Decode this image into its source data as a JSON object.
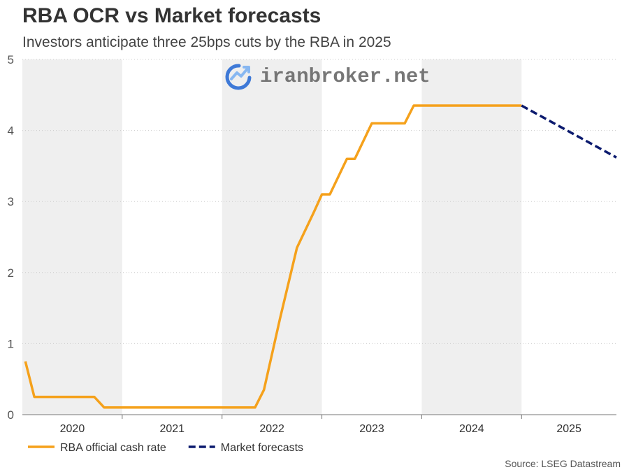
{
  "chart_data": {
    "type": "line",
    "title": "RBA OCR vs Market forecasts",
    "subtitle": "Investors anticipate three 25bps cuts by the RBA in 2025",
    "source": "Source: LSEG Datastream",
    "watermark": "iranbroker.net",
    "xlabel": "",
    "ylabel": "",
    "xlim": [
      2020.0,
      2025.95
    ],
    "ylim": [
      0,
      5
    ],
    "yticks": [
      0,
      1,
      2,
      3,
      4,
      5
    ],
    "year_labels": [
      "2020",
      "2021",
      "2022",
      "2023",
      "2024",
      "2025"
    ],
    "shaded_years": [
      "2020",
      "2022",
      "2024"
    ],
    "legend": {
      "position": "bottom-left"
    },
    "series": [
      {
        "name": "RBA official cash rate",
        "color": "#f5a11b",
        "style": "solid",
        "x": [
          2020.03,
          2020.12,
          2020.72,
          2020.82,
          2021.33,
          2022.33,
          2022.42,
          2022.58,
          2022.75,
          2022.92,
          2023.0,
          2023.08,
          2023.25,
          2023.33,
          2023.5,
          2023.83,
          2023.92,
          2025.0
        ],
        "values": [
          0.75,
          0.25,
          0.25,
          0.1,
          0.1,
          0.1,
          0.35,
          1.35,
          2.35,
          2.85,
          3.1,
          3.1,
          3.6,
          3.6,
          4.1,
          4.1,
          4.35,
          4.35
        ]
      },
      {
        "name": "Market forecasts",
        "color": "#0b1a6e",
        "style": "dashed",
        "x": [
          2025.0,
          2025.95
        ],
        "values": [
          4.35,
          3.62
        ]
      }
    ]
  },
  "icon": {
    "logo": "chart-trend-logo-icon"
  }
}
